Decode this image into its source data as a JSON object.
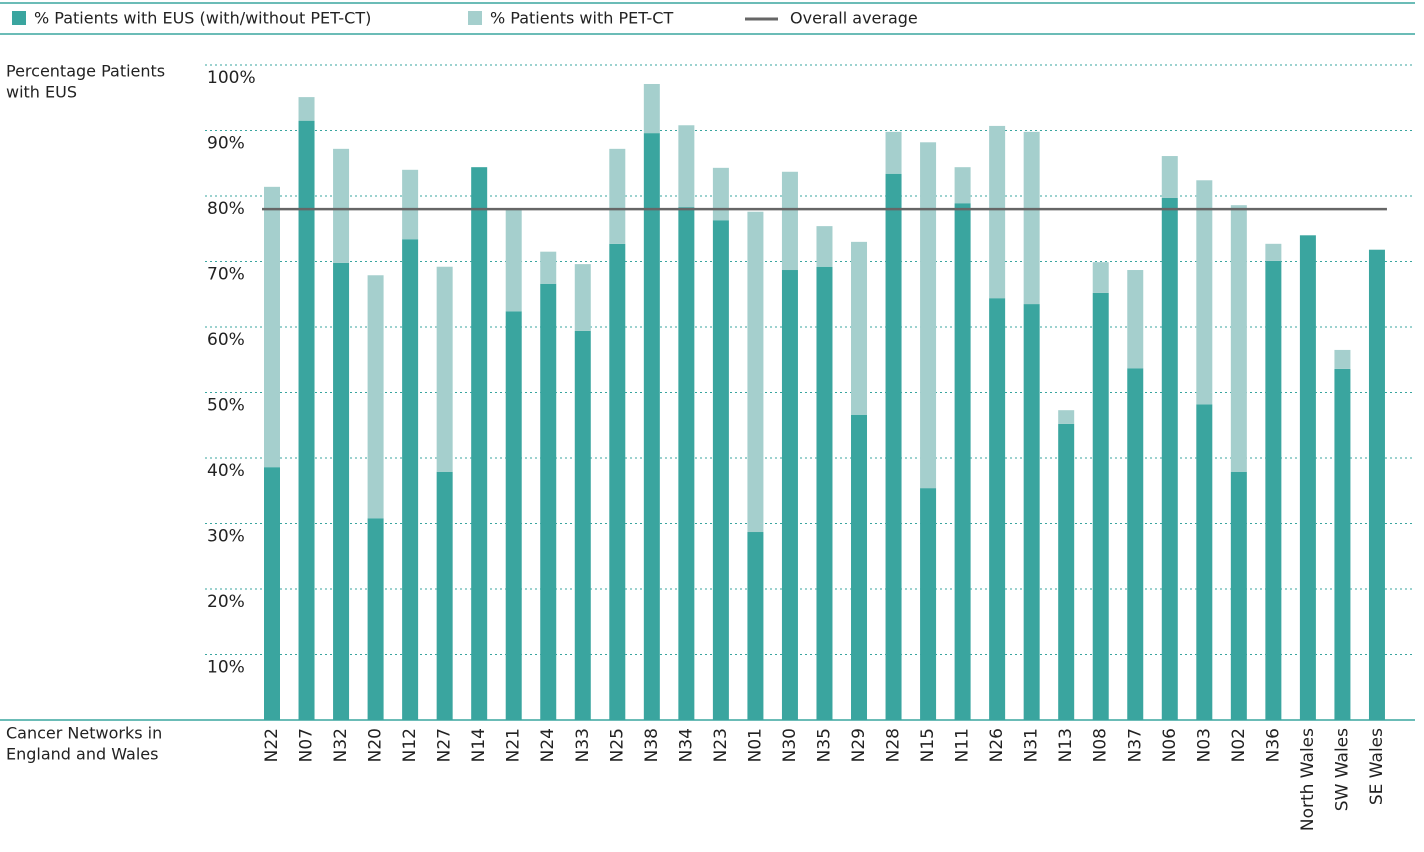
{
  "chart_data": {
    "type": "stacked_bar",
    "categories": [
      "N22",
      "N07",
      "N32",
      "N20",
      "N12",
      "N27",
      "N14",
      "N21",
      "N24",
      "N33",
      "N25",
      "N38",
      "N34",
      "N23",
      "N01",
      "N30",
      "N35",
      "N29",
      "N28",
      "N15",
      "N11",
      "N26",
      "N31",
      "N13",
      "N08",
      "N37",
      "N06",
      "N03",
      "N02",
      "N36",
      "North Wales",
      "SW Wales",
      "SE Wales"
    ],
    "series": [
      {
        "name": "% Patients with EUS (with/without PET-CT)",
        "color": "#3aa59f",
        "values": [
          38.6,
          91.5,
          69.8,
          30.8,
          73.4,
          37.9,
          84.4,
          62.4,
          66.6,
          59.4,
          72.7,
          89.6,
          78.3,
          76.3,
          28.7,
          68.7,
          69.2,
          46.6,
          83.4,
          35.4,
          78.9,
          64.4,
          63.5,
          45.2,
          65.2,
          53.7,
          79.7,
          48.2,
          37.9,
          70.1,
          74.0,
          53.6,
          71.8
        ]
      },
      {
        "name": "% Patients with PET-CT",
        "color": "#a5cfcd",
        "values": [
          42.8,
          3.6,
          17.4,
          37.1,
          10.6,
          31.3,
          0,
          15.6,
          4.9,
          10.2,
          14.5,
          7.5,
          12.5,
          8.0,
          48.9,
          15.0,
          6.2,
          26.4,
          6.4,
          52.8,
          5.5,
          26.3,
          26.3,
          2.1,
          4.7,
          15.0,
          6.4,
          34.2,
          40.7,
          2.6,
          0,
          2.9,
          0
        ]
      }
    ],
    "average": {
      "name": "Overall average",
      "value": 78.0,
      "color": "#666666"
    },
    "y_label": [
      "Percentage Patients",
      "with EUS"
    ],
    "x_label": [
      "Cancer Networks in",
      "England and Wales"
    ],
    "ylim": [
      0,
      100
    ],
    "yticks": [
      {
        "value": 10,
        "label": "10%"
      },
      {
        "value": 20,
        "label": "20%"
      },
      {
        "value": 30,
        "label": "30%"
      },
      {
        "value": 40,
        "label": "40%"
      },
      {
        "value": 50,
        "label": "50%"
      },
      {
        "value": 60,
        "label": "60%"
      },
      {
        "value": 70,
        "label": "70%"
      },
      {
        "value": 80,
        "label": "80%"
      },
      {
        "value": 90,
        "label": "90%"
      },
      {
        "value": 100,
        "label": "100%"
      }
    ],
    "grid": true
  }
}
